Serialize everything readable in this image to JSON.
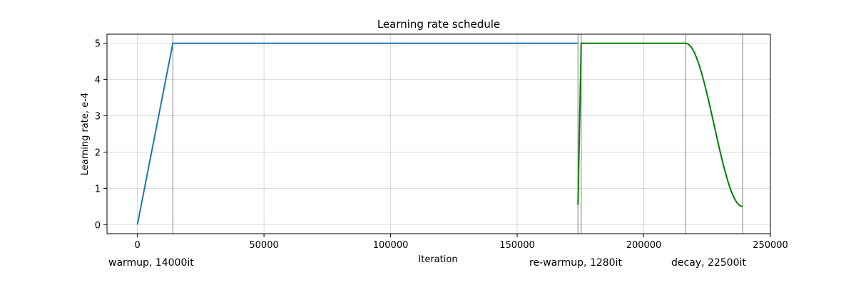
{
  "chart_data": {
    "type": "line",
    "title": "Learning rate schedule",
    "xlabel": "Iteration",
    "ylabel": "Learning rate, e-4",
    "xlim": [
      -12000,
      250000
    ],
    "ylim": [
      -0.25,
      5.25
    ],
    "grid": true,
    "x_ticks": [
      0,
      50000,
      100000,
      150000,
      200000,
      250000
    ],
    "x_tick_labels": [
      "0",
      "50000",
      "100000",
      "150000",
      "200000",
      "250000"
    ],
    "y_ticks": [
      0,
      1,
      2,
      3,
      4,
      5
    ],
    "y_tick_labels": [
      "0",
      "1",
      "2",
      "3",
      "4",
      "5"
    ],
    "vertical_lines": [
      14000,
      174000,
      175280,
      216500,
      239000
    ],
    "annotations": [
      {
        "text": "warmup, 14000it"
      },
      {
        "text": "re-warmup, 1280it"
      },
      {
        "text": "decay, 22500it"
      }
    ],
    "series": [
      {
        "color": "#1f77b4",
        "kind": "piecewise",
        "x": [
          0,
          14000,
          174000
        ],
        "y": [
          0,
          5,
          5
        ]
      },
      {
        "color": "#008000",
        "kind": "rewarmup-decay",
        "start_x": 174000,
        "start_y": 0.55,
        "peak_x": 175280,
        "peak_y": 5,
        "decay_start_x": 216500,
        "decay_end_x": 239000,
        "end_y": 0.5
      }
    ],
    "colors": {
      "grid": "#b0b0b0",
      "vline": "#808080",
      "frame": "#000000"
    }
  }
}
